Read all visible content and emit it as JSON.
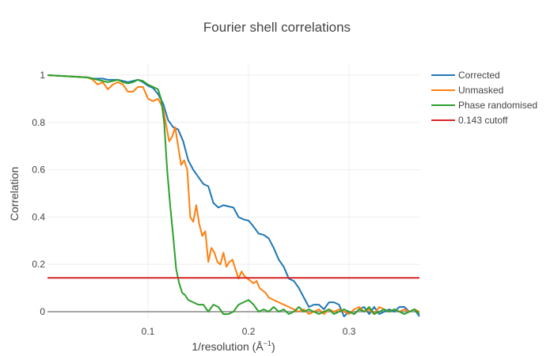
{
  "chart_data": {
    "type": "line",
    "title": "Fourier shell correlations",
    "xlabel": "1/resolution (Å",
    "xlabel_sup": "−1",
    "xlabel_close": ")",
    "ylabel": "Correlation",
    "xlim": [
      0.0,
      0.37
    ],
    "ylim": [
      -0.03,
      1.05
    ],
    "x_ticks": [
      0.1,
      0.2,
      0.3
    ],
    "x_tick_labels": [
      "0.1",
      "0.2",
      "0.3"
    ],
    "y_ticks": [
      0,
      0.2,
      0.4,
      0.6,
      0.8,
      1
    ],
    "y_tick_labels": [
      "0",
      "0.2",
      "0.4",
      "0.6",
      "0.8",
      "1"
    ],
    "grid": true,
    "legend_position": "top-right",
    "series": [
      {
        "name": "Corrected",
        "color": "#1f77b4",
        "x": [
          0.0,
          0.04,
          0.045,
          0.05,
          0.055,
          0.06,
          0.065,
          0.07,
          0.075,
          0.08,
          0.085,
          0.09,
          0.095,
          0.1,
          0.105,
          0.11,
          0.115,
          0.12,
          0.125,
          0.13,
          0.135,
          0.14,
          0.145,
          0.15,
          0.155,
          0.16,
          0.165,
          0.17,
          0.175,
          0.18,
          0.185,
          0.19,
          0.195,
          0.2,
          0.205,
          0.21,
          0.215,
          0.22,
          0.225,
          0.23,
          0.235,
          0.24,
          0.245,
          0.25,
          0.255,
          0.26,
          0.265,
          0.27,
          0.275,
          0.28,
          0.285,
          0.29,
          0.295,
          0.3,
          0.305,
          0.31,
          0.315,
          0.32,
          0.325,
          0.33,
          0.335,
          0.34,
          0.345,
          0.35,
          0.355,
          0.36,
          0.365,
          0.37
        ],
        "y": [
          1.0,
          0.99,
          0.985,
          0.985,
          0.985,
          0.98,
          0.98,
          0.98,
          0.975,
          0.97,
          0.975,
          0.98,
          0.97,
          0.955,
          0.945,
          0.92,
          0.88,
          0.81,
          0.78,
          0.77,
          0.72,
          0.64,
          0.6,
          0.57,
          0.54,
          0.53,
          0.46,
          0.44,
          0.45,
          0.445,
          0.44,
          0.4,
          0.39,
          0.385,
          0.36,
          0.33,
          0.325,
          0.31,
          0.27,
          0.22,
          0.19,
          0.14,
          0.13,
          0.1,
          0.06,
          0.02,
          0.03,
          0.03,
          0.01,
          0.04,
          0.04,
          0.03,
          -0.02,
          0.0,
          -0.01,
          0.01,
          0.02,
          -0.01,
          0.02,
          -0.01,
          0.0,
          0.01,
          0.0,
          0.02,
          0.02,
          0.0,
          0.01,
          -0.02
        ]
      },
      {
        "name": "Unmasked",
        "color": "#ff7f0e",
        "x": [
          0.0,
          0.04,
          0.045,
          0.05,
          0.055,
          0.06,
          0.065,
          0.07,
          0.075,
          0.08,
          0.085,
          0.09,
          0.095,
          0.1,
          0.105,
          0.11,
          0.115,
          0.118,
          0.121,
          0.124,
          0.127,
          0.13,
          0.133,
          0.136,
          0.139,
          0.142,
          0.145,
          0.148,
          0.151,
          0.154,
          0.157,
          0.16,
          0.163,
          0.166,
          0.169,
          0.172,
          0.175,
          0.178,
          0.181,
          0.184,
          0.187,
          0.19,
          0.193,
          0.196,
          0.199,
          0.202,
          0.205,
          0.208,
          0.211,
          0.214,
          0.217,
          0.22,
          0.225,
          0.23,
          0.235,
          0.24,
          0.245,
          0.25,
          0.255,
          0.26,
          0.265,
          0.27,
          0.275,
          0.28,
          0.285,
          0.29,
          0.295,
          0.3,
          0.305,
          0.31,
          0.315,
          0.32,
          0.325,
          0.33,
          0.335,
          0.34,
          0.345,
          0.35,
          0.355,
          0.36,
          0.365,
          0.37
        ],
        "y": [
          1.0,
          0.99,
          0.98,
          0.96,
          0.97,
          0.94,
          0.96,
          0.97,
          0.96,
          0.93,
          0.93,
          0.95,
          0.95,
          0.9,
          0.89,
          0.9,
          0.86,
          0.79,
          0.72,
          0.74,
          0.78,
          0.7,
          0.62,
          0.64,
          0.6,
          0.4,
          0.38,
          0.45,
          0.37,
          0.32,
          0.34,
          0.21,
          0.27,
          0.25,
          0.21,
          0.2,
          0.25,
          0.19,
          0.21,
          0.22,
          0.18,
          0.14,
          0.17,
          0.15,
          0.14,
          0.13,
          0.12,
          0.13,
          0.1,
          0.09,
          0.08,
          0.06,
          0.05,
          0.04,
          0.03,
          0.02,
          0.01,
          0.0,
          0.01,
          -0.01,
          0.0,
          0.01,
          -0.01,
          0.01,
          0.0,
          0.01,
          0.0,
          -0.01,
          0.01,
          0.02,
          0.0,
          0.01,
          -0.01,
          0.02,
          0.01,
          0.0,
          0.01,
          0.0,
          0.01,
          0.0,
          0.01,
          0.0
        ]
      },
      {
        "name": "Phase randomised",
        "color": "#2ca02c",
        "x": [
          0.0,
          0.04,
          0.045,
          0.05,
          0.055,
          0.06,
          0.065,
          0.07,
          0.075,
          0.08,
          0.085,
          0.09,
          0.095,
          0.1,
          0.105,
          0.11,
          0.113,
          0.116,
          0.119,
          0.122,
          0.125,
          0.128,
          0.131,
          0.134,
          0.137,
          0.14,
          0.145,
          0.15,
          0.155,
          0.16,
          0.165,
          0.17,
          0.175,
          0.18,
          0.185,
          0.19,
          0.195,
          0.2,
          0.205,
          0.21,
          0.215,
          0.22,
          0.225,
          0.23,
          0.235,
          0.24,
          0.245,
          0.25,
          0.255,
          0.26,
          0.265,
          0.27,
          0.275,
          0.28,
          0.285,
          0.29,
          0.295,
          0.3,
          0.305,
          0.31,
          0.315,
          0.32,
          0.325,
          0.33,
          0.335,
          0.34,
          0.345,
          0.35,
          0.355,
          0.36,
          0.365,
          0.37
        ],
        "y": [
          1.0,
          0.99,
          0.985,
          0.98,
          0.975,
          0.97,
          0.975,
          0.98,
          0.97,
          0.965,
          0.97,
          0.98,
          0.975,
          0.96,
          0.95,
          0.94,
          0.9,
          0.8,
          0.6,
          0.45,
          0.32,
          0.18,
          0.12,
          0.08,
          0.07,
          0.05,
          0.04,
          0.03,
          0.03,
          0.0,
          0.03,
          0.02,
          -0.01,
          -0.01,
          0.0,
          0.03,
          0.04,
          0.05,
          0.03,
          0.0,
          0.01,
          0.0,
          0.02,
          0.0,
          0.01,
          -0.01,
          0.0,
          0.02,
          0.0,
          0.01,
          0.0,
          -0.01,
          0.0,
          0.01,
          -0.01,
          0.0,
          0.01,
          0.0,
          -0.01,
          0.01,
          0.0,
          0.02,
          -0.01,
          0.0,
          0.01,
          0.0,
          0.01,
          0.0,
          -0.01,
          0.0,
          0.01,
          -0.01
        ]
      },
      {
        "name": "0.143 cutoff",
        "color": "#d62728",
        "x": [
          0.0,
          0.37
        ],
        "y": [
          0.143,
          0.143
        ]
      }
    ]
  }
}
